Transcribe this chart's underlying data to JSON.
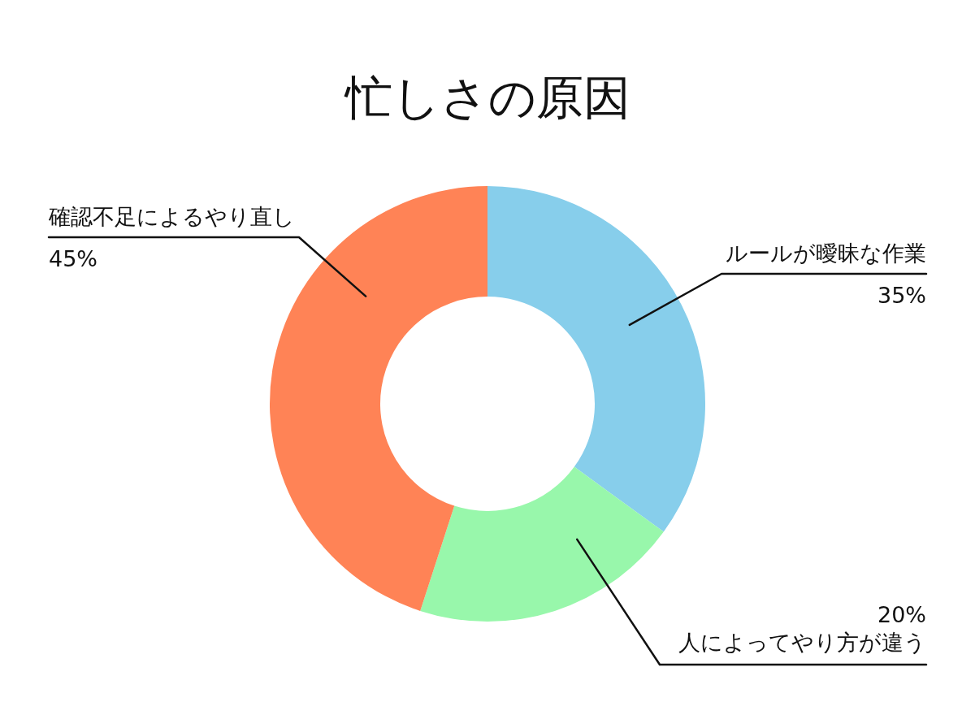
{
  "chart_data": {
    "type": "donut",
    "title": "忙しさの原因",
    "categories": [
      "ルールが曖昧な作業",
      "人によってやり方が違う",
      "確認不足によるやり直し"
    ],
    "values": [
      35,
      20,
      45
    ],
    "value_labels": [
      "35%",
      "20%",
      "45%"
    ],
    "colors": [
      "#87ceeb",
      "#98f7ab",
      "#ff8356"
    ]
  }
}
